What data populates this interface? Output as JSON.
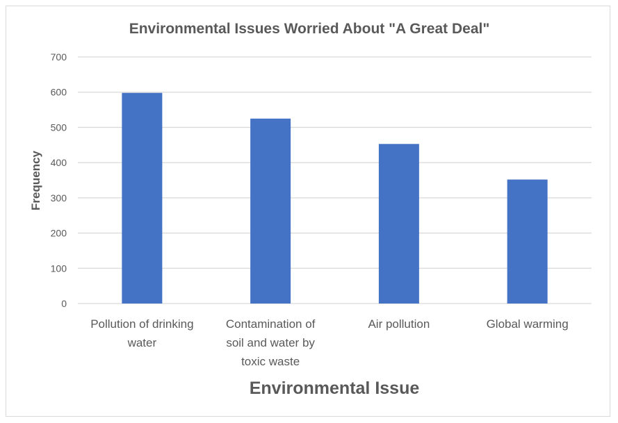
{
  "chart_data": {
    "type": "bar",
    "title": "Environmental Issues Worried About \"A Great Deal\"",
    "xlabel": "Environmental Issue",
    "ylabel": "Frequency",
    "categories": [
      [
        "Pollution of drinking",
        "water"
      ],
      [
        "Contamination of",
        "soil and water by",
        "toxic waste"
      ],
      [
        "Air pollution"
      ],
      [
        "Global warming"
      ]
    ],
    "values": [
      598,
      525,
      453,
      352
    ],
    "ylim": [
      0,
      700
    ],
    "yticks": [
      "0",
      "100",
      "200",
      "300",
      "400",
      "500",
      "600",
      "700"
    ],
    "grid": true,
    "colors": {
      "bar": "#4472c4",
      "grid": "#d9d9d9",
      "text": "#595959"
    }
  }
}
